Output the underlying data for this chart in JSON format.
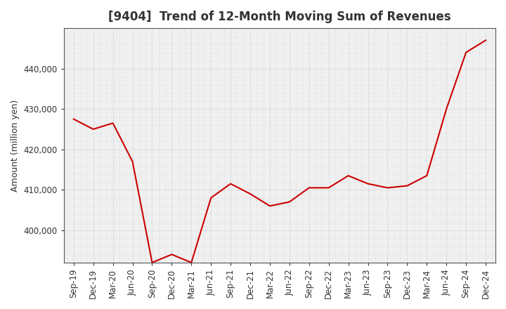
{
  "title": "[9404]  Trend of 12-Month Moving Sum of Revenues",
  "ylabel": "Amount (million yen)",
  "line_color": "#cc0000",
  "background_color": "#ffffff",
  "plot_bg_color": "#f0f0f0",
  "grid_color": "#bbbbbb",
  "x_labels": [
    "Sep-19",
    "Dec-19",
    "Mar-20",
    "Jun-20",
    "Sep-20",
    "Dec-20",
    "Mar-21",
    "Jun-21",
    "Sep-21",
    "Dec-21",
    "Mar-22",
    "Jun-22",
    "Sep-22",
    "Dec-22",
    "Mar-23",
    "Jun-23",
    "Sep-23",
    "Dec-23",
    "Mar-24",
    "Jun-24",
    "Sep-24",
    "Dec-24"
  ],
  "values": [
    427500,
    425000,
    426500,
    417000,
    392000,
    394000,
    392000,
    408000,
    411500,
    409000,
    406000,
    407000,
    410500,
    410500,
    413500,
    411500,
    410500,
    411000,
    413500,
    430000,
    444000,
    447000
  ],
  "ylim": [
    392000,
    450000
  ],
  "yticks": [
    400000,
    410000,
    420000,
    430000,
    440000
  ],
  "ytick_labels": [
    "400,000",
    "410,000",
    "420,000",
    "430,000",
    "440,000"
  ],
  "line_width": 1.5,
  "title_fontsize": 12,
  "axis_fontsize": 9,
  "tick_fontsize": 8.5
}
